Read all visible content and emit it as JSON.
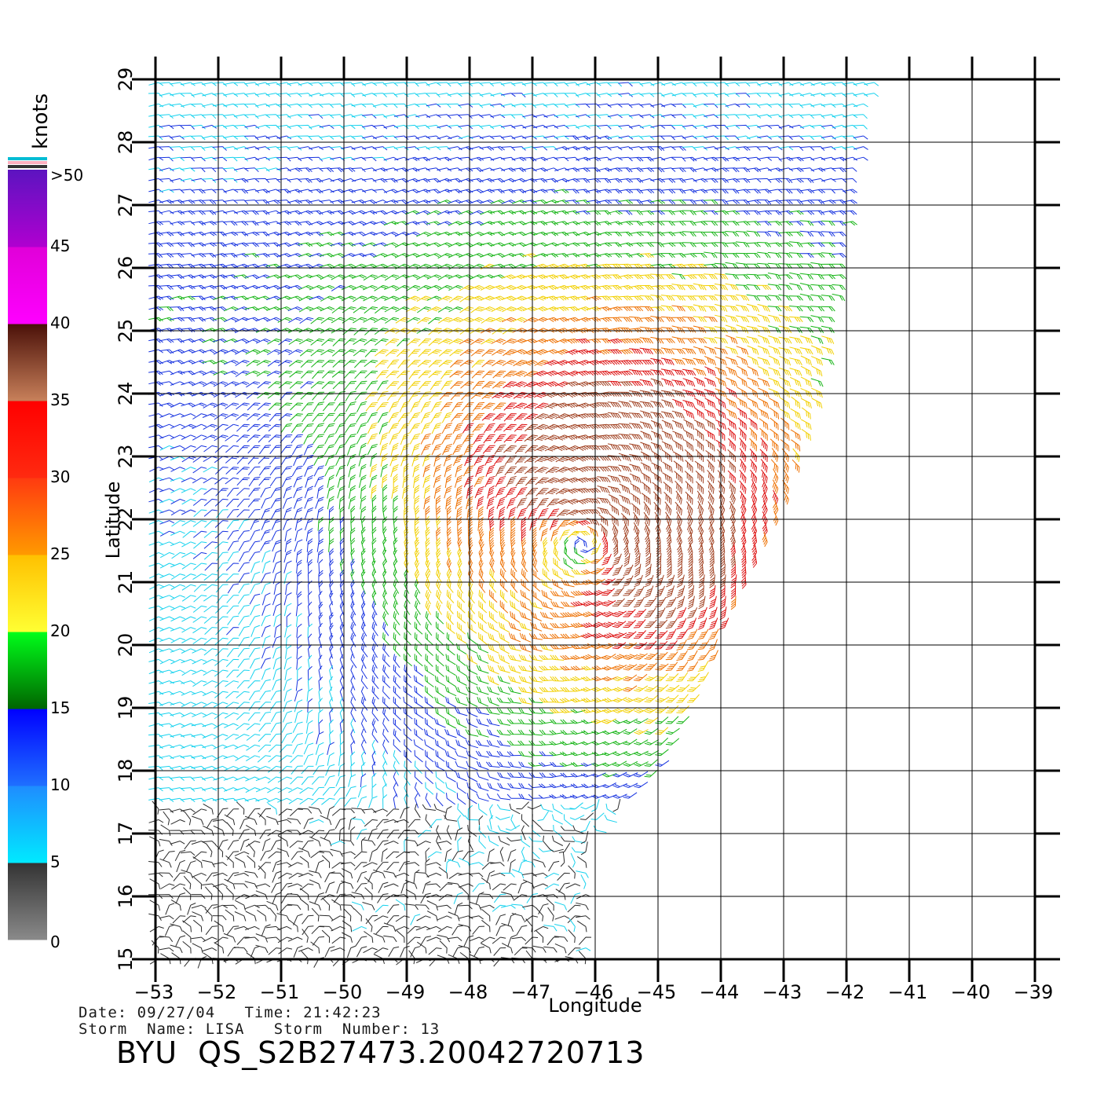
{
  "legend": {
    "unit": "knots",
    "labels": [
      ">50",
      "45",
      "40",
      "35",
      "30",
      "25",
      "20",
      "15",
      "10",
      "5",
      "0"
    ],
    "bands": [
      {
        "from": 0,
        "to": 5,
        "top": "#333333",
        "bottom": "#8a8a8a"
      },
      {
        "from": 5,
        "to": 10,
        "top": "#1f8cff",
        "bottom": "#00eaff"
      },
      {
        "from": 10,
        "to": 15,
        "top": "#0000ff",
        "bottom": "#1f6fff"
      },
      {
        "from": 15,
        "to": 20,
        "top": "#00ff1a",
        "bottom": "#006400"
      },
      {
        "from": 20,
        "to": 25,
        "top": "#ffc000",
        "bottom": "#ffff33"
      },
      {
        "from": 25,
        "to": 30,
        "top": "#ff3a10",
        "bottom": "#ff9a00"
      },
      {
        "from": 30,
        "to": 35,
        "top": "#ff0000",
        "bottom": "#ff2a10"
      },
      {
        "from": 35,
        "to": 40,
        "top": "#4a1008",
        "bottom": "#c8805a"
      },
      {
        "from": 40,
        "to": 45,
        "top": "#e000d8",
        "bottom": "#ff00ff"
      },
      {
        "from": 45,
        "to": 50,
        "top": "#5c14c0",
        "bottom": "#b000d0"
      }
    ],
    "overflow_colors": [
      "#00bcd4",
      "#ffb0c0",
      "#333333"
    ]
  },
  "axes": {
    "xlabel": "Longitude",
    "ylabel": "Latitude",
    "x_ticks": [
      -53,
      -52,
      -51,
      -50,
      -49,
      -48,
      -47,
      -46,
      -45,
      -44,
      -43,
      -42,
      -41,
      -40,
      -39
    ],
    "y_ticks": [
      15,
      16,
      17,
      18,
      19,
      20,
      21,
      22,
      23,
      24,
      25,
      26,
      27,
      28,
      29
    ],
    "xlim": [
      -53,
      -39
    ],
    "ylim": [
      15,
      29
    ]
  },
  "storm": {
    "center_lon": -46.2,
    "center_lat": 21.6,
    "swath_east_edge": [
      [
        29,
        -41.5
      ],
      [
        26,
        -42.0
      ],
      [
        24,
        -42.3
      ],
      [
        22,
        -43.0
      ],
      [
        20,
        -44.0
      ],
      [
        18,
        -44.9
      ],
      [
        17,
        -46.0
      ],
      [
        15,
        -46.1
      ]
    ]
  },
  "info": {
    "line1": "Date: 09/27/04   Time: 21:42:23",
    "line2": "Storm  Name: LISA   Storm  Number: 13",
    "product": "BYU  QS_S2B27473.20042720713"
  }
}
